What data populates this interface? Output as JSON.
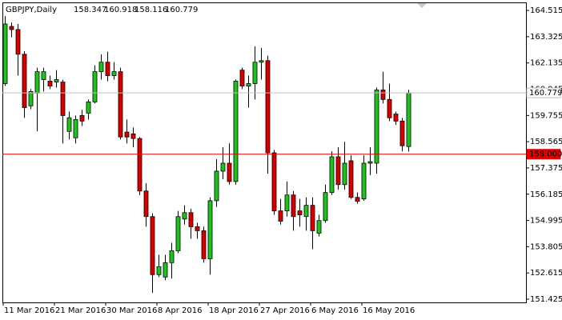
{
  "chart_data": {
    "type": "candlestick",
    "symbol": "GBPJPY,Daily",
    "categories": [
      "11 Mar 2016",
      null,
      null,
      null,
      null,
      null,
      null,
      null,
      "21 Mar 2016",
      null,
      null,
      null,
      null,
      null,
      null,
      null,
      "30 Mar 2016",
      null,
      null,
      null,
      null,
      null,
      null,
      null,
      "8 Apr 2016",
      null,
      null,
      null,
      null,
      null,
      null,
      null,
      "18 Apr 2016",
      null,
      null,
      null,
      null,
      null,
      null,
      null,
      "27 Apr 2016",
      null,
      null,
      null,
      null,
      null,
      null,
      null,
      "6 May 2016",
      null,
      null,
      null,
      null,
      null,
      null,
      null,
      "16 May 2016",
      null,
      null,
      null,
      null,
      null,
      null,
      null
    ],
    "open": [
      161.2,
      163.79,
      163.65,
      162.53,
      160.19,
      160.77,
      161.38,
      161.31,
      161.27,
      161.27,
      159.03,
      158.74,
      159.75,
      159.86,
      160.37,
      161.74,
      162.17,
      161.56,
      161.74,
      159.0,
      158.92,
      158.71,
      156.33,
      155.17,
      152.54,
      152.43,
      153.08,
      153.62,
      155.06,
      155.35,
      154.71,
      154.53,
      153.26,
      155.89,
      157.23,
      157.59,
      156.76,
      161.81,
      161.09,
      161.2,
      162.17,
      162.24,
      158.06,
      155.43,
      155.43,
      156.15,
      155.43,
      155.17,
      155.68,
      154.42,
      154.99,
      156.26,
      157.88,
      156.62,
      157.7,
      156.04,
      155.97,
      157.59,
      157.59,
      160.91,
      160.48,
      159.82,
      159.5,
      158.347
    ],
    "high": [
      164.26,
      163.97,
      163.9,
      162.67,
      160.95,
      161.92,
      161.92,
      161.56,
      161.81,
      161.38,
      159.93,
      159.75,
      160.01,
      160.48,
      162.03,
      162.53,
      162.64,
      162.17,
      161.92,
      159.57,
      159.21,
      158.78,
      156.69,
      155.32,
      153.44,
      153.44,
      153.98,
      155.43,
      155.68,
      155.53,
      154.89,
      154.71,
      156.04,
      157.77,
      158.31,
      158.49,
      161.38,
      161.92,
      161.56,
      162.89,
      162.82,
      162.46,
      158.2,
      155.97,
      156.76,
      156.33,
      155.97,
      156.04,
      156.04,
      155.25,
      156.62,
      158.13,
      158.31,
      158.56,
      157.95,
      156.26,
      157.95,
      158.31,
      161.02,
      161.74,
      161.2,
      159.93,
      159.65,
      160.918
    ],
    "low": [
      161.09,
      163.3,
      161.56,
      159.65,
      160.04,
      159.03,
      160.84,
      160.95,
      161.02,
      158.49,
      158.67,
      158.49,
      159.28,
      159.57,
      160.3,
      161.38,
      161.31,
      161.38,
      158.67,
      158.49,
      158.31,
      156.15,
      154.71,
      151.71,
      152.43,
      152.29,
      152.36,
      153.51,
      154.81,
      154.17,
      154.17,
      153.08,
      152.54,
      155.61,
      156.87,
      156.62,
      156.62,
      160.95,
      160.11,
      160.48,
      161.38,
      157.12,
      155.25,
      154.81,
      155.17,
      154.53,
      154.71,
      154.53,
      153.69,
      154.27,
      154.89,
      156.15,
      156.4,
      156.4,
      155.97,
      155.75,
      155.89,
      157.05,
      157.12,
      160.3,
      159.5,
      159.32,
      158.13,
      158.116
    ],
    "close": [
      163.9,
      163.65,
      162.53,
      160.11,
      160.84,
      161.74,
      161.74,
      161.09,
      161.38,
      159.75,
      159.65,
      159.57,
      159.5,
      160.37,
      161.74,
      162.17,
      161.56,
      161.74,
      158.78,
      158.78,
      158.71,
      156.33,
      155.17,
      152.54,
      152.9,
      153.08,
      153.62,
      155.17,
      155.35,
      154.71,
      154.53,
      153.26,
      155.89,
      157.23,
      157.59,
      156.76,
      161.31,
      161.09,
      161.2,
      162.17,
      162.24,
      158.06,
      155.43,
      154.96,
      156.15,
      155.17,
      155.25,
      155.68,
      154.53,
      154.99,
      156.26,
      157.88,
      156.62,
      157.59,
      156.04,
      155.86,
      157.59,
      157.66,
      160.91,
      160.48,
      159.65,
      159.5,
      158.38,
      160.779
    ],
    "up_color": "#22c022",
    "down_color": "#d40000",
    "ylim": [
      151.28,
      164.88
    ],
    "yticks": [
      164.515,
      163.325,
      162.135,
      160.945,
      159.755,
      158.565,
      157.375,
      156.185,
      154.995,
      153.805,
      152.615,
      151.425
    ],
    "hlines": [
      {
        "value": 160.779,
        "color": "#c0c0c0"
      },
      {
        "value": 158.0,
        "label": "158.000",
        "color": "#e00000"
      }
    ]
  }
}
